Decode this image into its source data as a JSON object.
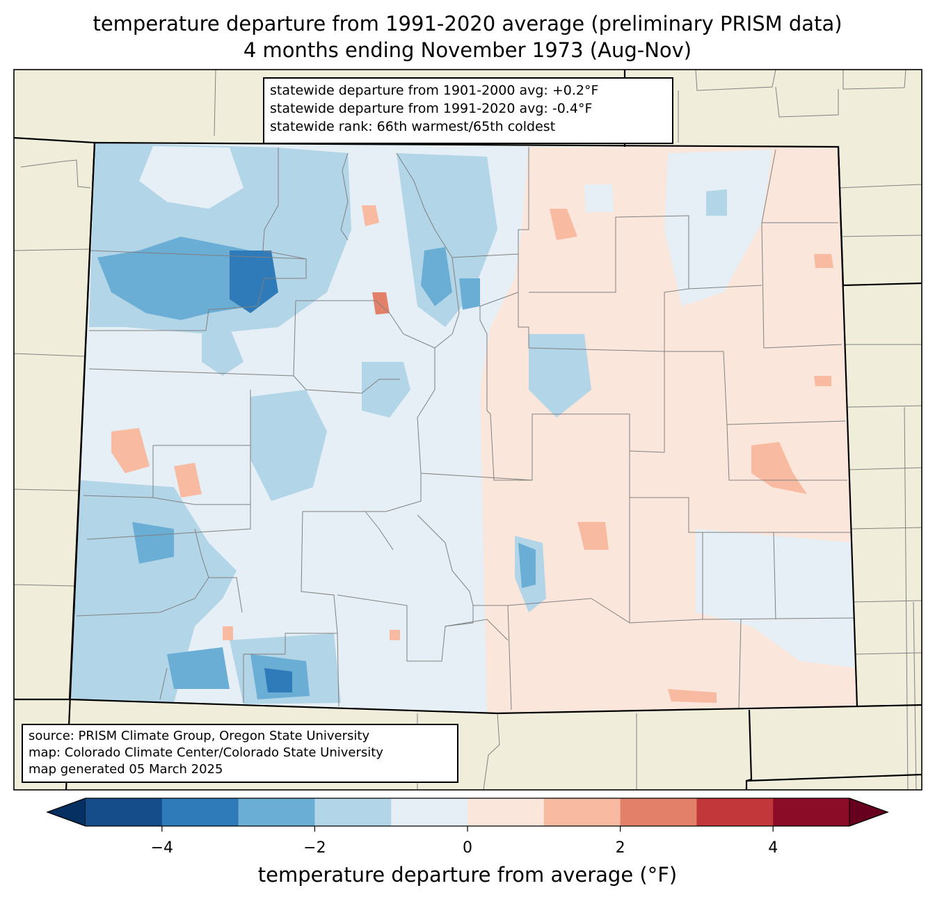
{
  "title": {
    "line1": "temperature departure from 1991-2020 average (preliminary PRISM data)",
    "line2": "4 months ending November 1973 (Aug-Nov)"
  },
  "stats": {
    "line1": "statewide departure from 1901-2000 avg: +0.2°F",
    "line2": "statewide departure from 1991-2020 avg: -0.4°F",
    "line3": "statewide rank: 66th warmest/65th coldest"
  },
  "source": {
    "line1": "source: PRISM Climate Group, Oregon State University",
    "line2": "map: Colorado Climate Center/Colorado State University",
    "line3": "map generated 05 March 2025"
  },
  "colorbar": {
    "label": "temperature departure from average (°F)",
    "min": -5,
    "max": 5,
    "step": 1,
    "ticks": [
      {
        "value": -4,
        "label": "−4"
      },
      {
        "value": -2,
        "label": "−2"
      },
      {
        "value": 0,
        "label": "0"
      },
      {
        "value": 2,
        "label": "2"
      },
      {
        "value": 4,
        "label": "4"
      }
    ],
    "colors": [
      "#053061",
      "#154c8a",
      "#2f7ab9",
      "#6aadd5",
      "#b3d5e8",
      "#e5eff5",
      "#fbe6db",
      "#f8bba1",
      "#e3806a",
      "#c2383a",
      "#8b0c26",
      "#67001f"
    ]
  },
  "map_colors": {
    "land": "#f0eedb",
    "state_border": "#000000",
    "county_border": "#808080"
  }
}
